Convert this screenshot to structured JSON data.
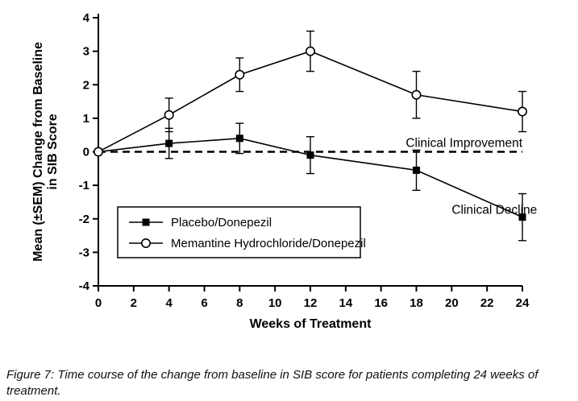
{
  "figure": {
    "caption": "Figure 7: Time course of the change from baseline in SIB score for patients completing 24 weeks of treatment."
  },
  "chart_data": {
    "type": "line",
    "title": "",
    "xlabel": "Weeks of Treatment",
    "ylabel": "Mean (±SEM) Change from Baseline in SIB Score",
    "ylabel_lines": [
      "Mean (±SEM) Change from Baseline",
      "in SIB Score"
    ],
    "xlim": [
      0,
      24
    ],
    "ylim": [
      -4,
      4
    ],
    "xticks": [
      0,
      2,
      4,
      6,
      8,
      10,
      12,
      14,
      16,
      18,
      20,
      22,
      24
    ],
    "yticks": [
      -4,
      -3,
      -2,
      -1,
      0,
      1,
      2,
      3,
      4
    ],
    "x": [
      0,
      4,
      8,
      12,
      18,
      24
    ],
    "series": [
      {
        "name": "Placebo/Donepezil",
        "marker": "filled-square",
        "values": [
          0,
          0.25,
          0.4,
          -0.1,
          -0.55,
          -1.95
        ],
        "sem": [
          0,
          0.45,
          0.45,
          0.55,
          0.6,
          0.7
        ]
      },
      {
        "name": "Memantine Hydrochloride/Donepezil",
        "marker": "open-circle",
        "values": [
          0,
          1.1,
          2.3,
          3.0,
          1.7,
          1.2
        ],
        "sem": [
          0,
          0.5,
          0.5,
          0.6,
          0.7,
          0.6
        ]
      }
    ],
    "reference_line": {
      "y": 0,
      "style": "dashed"
    },
    "annotations": [
      {
        "text": "Clinical Improvement",
        "x": 17.4,
        "y": 0.15
      },
      {
        "text": "Clinical Decline",
        "x": 20.0,
        "y": -1.85
      }
    ],
    "legend_position": "lower-left",
    "grid": false,
    "line_color": "#000000",
    "background_color": "#ffffff"
  }
}
